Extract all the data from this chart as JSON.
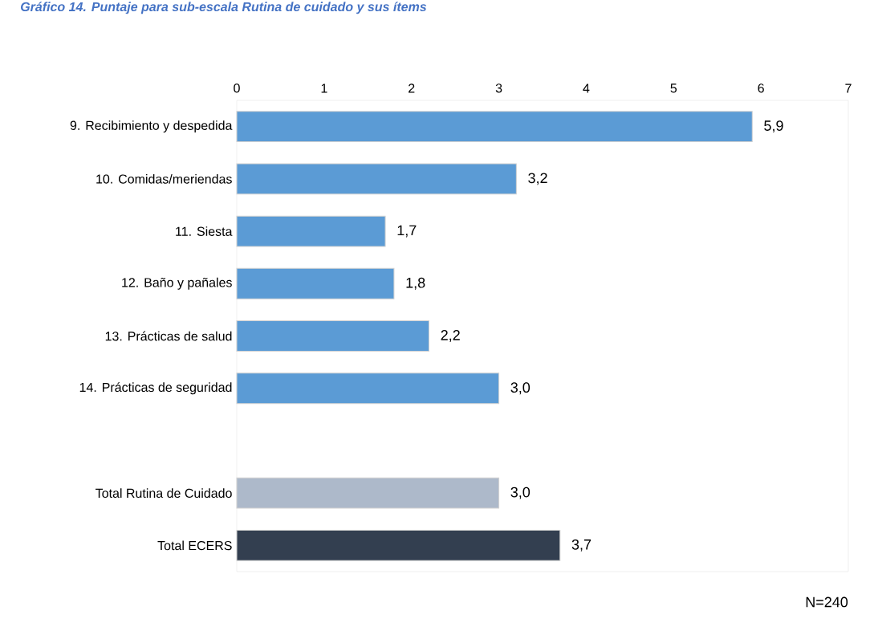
{
  "chart_data": {
    "type": "bar",
    "orientation": "horizontal",
    "title": "Gráfico 14. Puntaje para sub-escala Rutina de cuidado y sus ítems",
    "categories": [
      "9. Recibimiento y despedida",
      "10. Comidas/meriendas",
      "11. Siesta",
      "12. Baño y pañales",
      "13. Prácticas de salud",
      "14. Prácticas de seguridad",
      null,
      "Total Rutina de Cuidado",
      "Total ECERS"
    ],
    "values": [
      5.9,
      3.2,
      1.7,
      1.8,
      2.2,
      3.0,
      null,
      3.0,
      3.7
    ],
    "value_labels": [
      "5,9",
      "3,2",
      "1,7",
      "1,8",
      "2,2",
      "3,0",
      null,
      "3,0",
      "3,7"
    ],
    "colors": [
      "#5b9bd5",
      "#5b9bd5",
      "#5b9bd5",
      "#5b9bd5",
      "#5b9bd5",
      "#5b9bd5",
      "#5b9bd5",
      "#adb9ca",
      "#333f50"
    ],
    "xlim": [
      0,
      7
    ],
    "xticks": [
      0,
      1,
      2,
      3,
      4,
      5,
      6,
      7
    ],
    "annotations": [
      "N=240"
    ]
  }
}
